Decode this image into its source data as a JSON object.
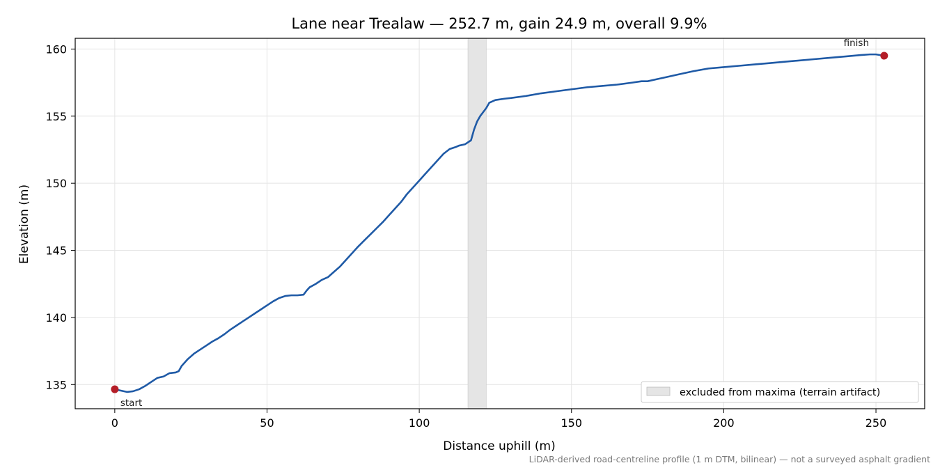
{
  "chart_data": {
    "type": "line",
    "title": "Lane near Trealaw — 252.7 m, gain 24.9 m, overall 9.9%",
    "xlabel": "Distance uphill (m)",
    "ylabel": "Elevation (m)",
    "xlim": [
      -13,
      266
    ],
    "ylim": [
      133.2,
      160.8
    ],
    "xticks": [
      0,
      50,
      100,
      150,
      200,
      250
    ],
    "yticks": [
      135,
      140,
      145,
      150,
      155,
      160
    ],
    "grid": true,
    "line_color": "#1f5aa6",
    "marker_color": "#b41e28",
    "band_color": "#e5e5e5",
    "series": [
      {
        "values": [
          [
            0,
            134.65
          ],
          [
            2,
            134.55
          ],
          [
            4,
            134.45
          ],
          [
            6,
            134.5
          ],
          [
            8,
            134.65
          ],
          [
            10,
            134.9
          ],
          [
            12,
            135.2
          ],
          [
            14,
            135.5
          ],
          [
            16,
            135.6
          ],
          [
            18,
            135.85
          ],
          [
            20,
            135.9
          ],
          [
            21,
            136.0
          ],
          [
            22,
            136.4
          ],
          [
            24,
            136.9
          ],
          [
            26,
            137.3
          ],
          [
            28,
            137.6
          ],
          [
            30,
            137.9
          ],
          [
            32,
            138.2
          ],
          [
            34,
            138.45
          ],
          [
            36,
            138.75
          ],
          [
            38,
            139.1
          ],
          [
            40,
            139.4
          ],
          [
            42,
            139.7
          ],
          [
            44,
            140.0
          ],
          [
            46,
            140.3
          ],
          [
            48,
            140.6
          ],
          [
            50,
            140.9
          ],
          [
            52,
            141.2
          ],
          [
            54,
            141.45
          ],
          [
            56,
            141.6
          ],
          [
            58,
            141.65
          ],
          [
            60,
            141.65
          ],
          [
            62,
            141.7
          ],
          [
            63,
            142.0
          ],
          [
            64,
            142.25
          ],
          [
            66,
            142.5
          ],
          [
            68,
            142.8
          ],
          [
            70,
            143.0
          ],
          [
            72,
            143.4
          ],
          [
            74,
            143.8
          ],
          [
            76,
            144.3
          ],
          [
            78,
            144.8
          ],
          [
            80,
            145.3
          ],
          [
            82,
            145.75
          ],
          [
            84,
            146.2
          ],
          [
            86,
            146.65
          ],
          [
            88,
            147.1
          ],
          [
            90,
            147.6
          ],
          [
            92,
            148.1
          ],
          [
            94,
            148.6
          ],
          [
            96,
            149.2
          ],
          [
            98,
            149.7
          ],
          [
            100,
            150.2
          ],
          [
            102,
            150.7
          ],
          [
            104,
            151.2
          ],
          [
            106,
            151.7
          ],
          [
            108,
            152.2
          ],
          [
            110,
            152.55
          ],
          [
            112,
            152.7
          ],
          [
            113,
            152.8
          ],
          [
            115,
            152.9
          ],
          [
            117,
            153.2
          ],
          [
            118,
            154.0
          ],
          [
            119,
            154.6
          ],
          [
            120,
            155.0
          ],
          [
            121,
            155.3
          ],
          [
            122,
            155.6
          ],
          [
            123,
            156.0
          ],
          [
            125,
            156.2
          ],
          [
            128,
            156.3
          ],
          [
            130,
            156.35
          ],
          [
            135,
            156.5
          ],
          [
            140,
            156.7
          ],
          [
            145,
            156.85
          ],
          [
            150,
            157.0
          ],
          [
            155,
            157.15
          ],
          [
            160,
            157.25
          ],
          [
            165,
            157.35
          ],
          [
            170,
            157.5
          ],
          [
            173,
            157.6
          ],
          [
            175,
            157.6
          ],
          [
            178,
            157.75
          ],
          [
            180,
            157.85
          ],
          [
            185,
            158.1
          ],
          [
            190,
            158.35
          ],
          [
            195,
            158.55
          ],
          [
            200,
            158.65
          ],
          [
            205,
            158.75
          ],
          [
            210,
            158.85
          ],
          [
            215,
            158.95
          ],
          [
            220,
            159.05
          ],
          [
            225,
            159.15
          ],
          [
            230,
            159.25
          ],
          [
            235,
            159.35
          ],
          [
            240,
            159.45
          ],
          [
            245,
            159.55
          ],
          [
            248,
            159.6
          ],
          [
            250,
            159.6
          ],
          [
            252.7,
            159.5
          ]
        ]
      }
    ],
    "excluded_band": {
      "x_range": [
        116,
        122
      ],
      "label": "excluded from maxima (terrain artifact)"
    },
    "annotations": [
      {
        "label": "start",
        "x": 0,
        "y": 134.65
      },
      {
        "label": "finish",
        "x": 252.7,
        "y": 159.5
      }
    ],
    "legend": {
      "placement": "lower-right"
    },
    "footnote": "LiDAR-derived road-centreline profile (1 m DTM, bilinear) — not a surveyed asphalt gradient"
  }
}
